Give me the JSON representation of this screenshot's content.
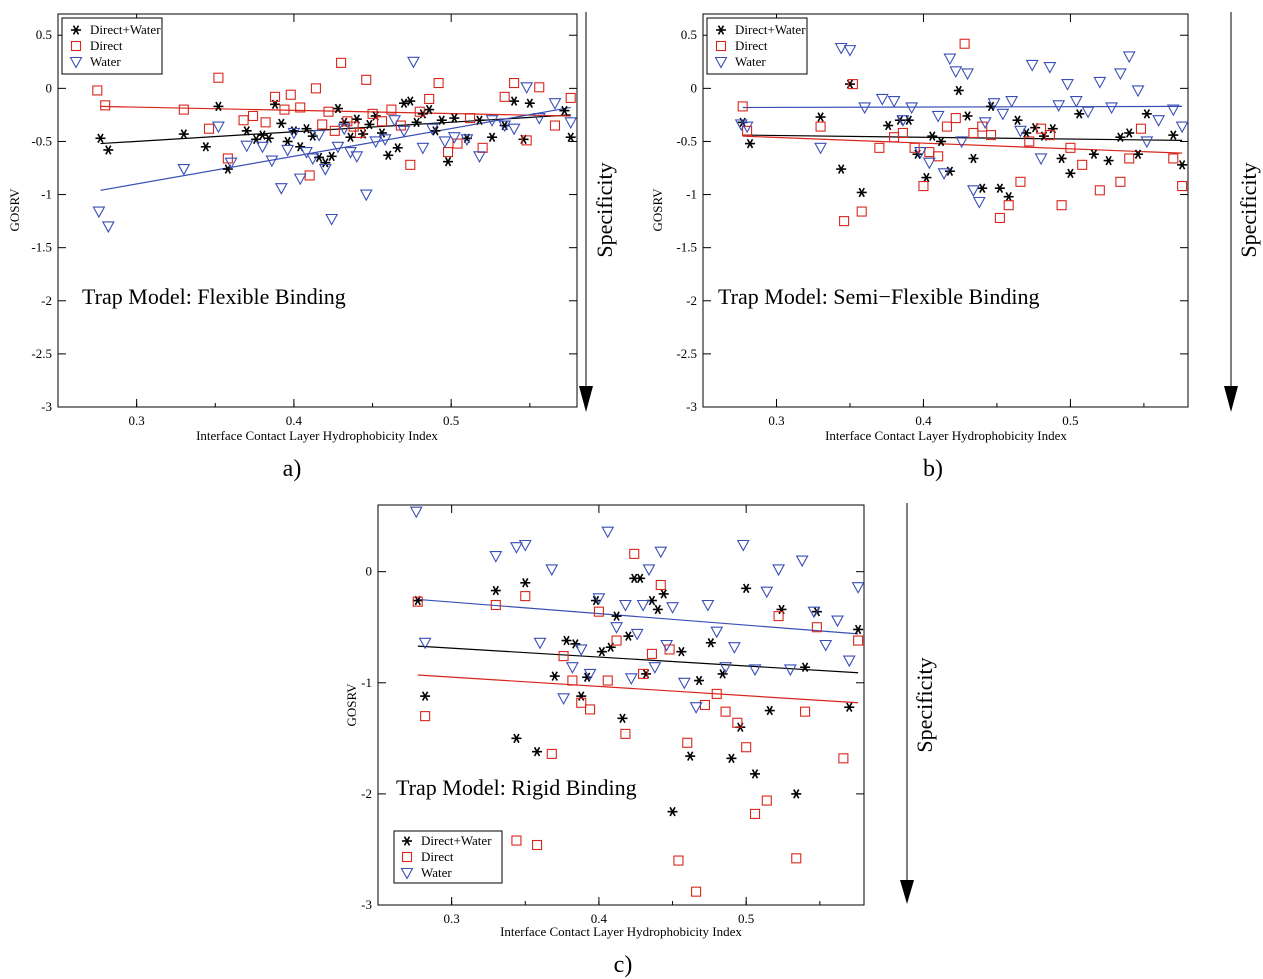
{
  "colors": {
    "combined": "#000000",
    "direct": "#d9261c",
    "water": "#3a4fb5",
    "axis": "#000000"
  },
  "chart_data": [
    {
      "type": "scatter",
      "panel_label": "a)",
      "annotation": "Trap Model: Flexible Binding",
      "xlabel": "Interface Contact Layer Hydrophobicity Index",
      "ylabel": "GOSRV",
      "specificity_label": "Specificity",
      "xlim": [
        0.25,
        0.58
      ],
      "ylim": [
        -3,
        0.7
      ],
      "xticks": [
        "0.3",
        "0.4",
        "0.5"
      ],
      "yticks": [
        "-3",
        "-2.5",
        "-2",
        "-1.5",
        "-1",
        "-0.5",
        "0",
        "0.5"
      ],
      "grid": false,
      "legend_position": "top-left",
      "series": [
        {
          "name": "Direct+Water",
          "marker": "star",
          "x": [
            0.277,
            0.282,
            0.33,
            0.344,
            0.352,
            0.358,
            0.37,
            0.376,
            0.38,
            0.384,
            0.388,
            0.392,
            0.396,
            0.4,
            0.404,
            0.408,
            0.412,
            0.416,
            0.42,
            0.424,
            0.428,
            0.432,
            0.436,
            0.44,
            0.444,
            0.448,
            0.452,
            0.456,
            0.46,
            0.466,
            0.47,
            0.474,
            0.478,
            0.482,
            0.486,
            0.49,
            0.494,
            0.498,
            0.502,
            0.51,
            0.518,
            0.526,
            0.534,
            0.54,
            0.546,
            0.55,
            0.572,
            0.576
          ],
          "y": [
            -0.47,
            -0.58,
            -0.43,
            -0.55,
            -0.17,
            -0.76,
            -0.4,
            -0.48,
            -0.44,
            -0.47,
            -0.15,
            -0.33,
            -0.5,
            -0.4,
            -0.55,
            -0.38,
            -0.45,
            -0.65,
            -0.7,
            -0.64,
            -0.19,
            -0.32,
            -0.46,
            -0.29,
            -0.43,
            -0.34,
            -0.26,
            -0.42,
            -0.63,
            -0.56,
            -0.14,
            -0.12,
            -0.32,
            -0.24,
            -0.2,
            -0.4,
            -0.3,
            -0.69,
            -0.28,
            -0.47,
            -0.3,
            -0.46,
            -0.35,
            -0.12,
            -0.48,
            -0.14,
            -0.21,
            -0.46
          ]
        },
        {
          "name": "Direct",
          "marker": "square",
          "x": [
            0.275,
            0.28,
            0.33,
            0.346,
            0.352,
            0.358,
            0.368,
            0.374,
            0.382,
            0.388,
            0.394,
            0.398,
            0.404,
            0.41,
            0.414,
            0.418,
            0.422,
            0.426,
            0.43,
            0.434,
            0.438,
            0.442,
            0.446,
            0.45,
            0.456,
            0.462,
            0.468,
            0.474,
            0.48,
            0.486,
            0.492,
            0.498,
            0.504,
            0.512,
            0.52,
            0.534,
            0.54,
            0.548,
            0.556,
            0.566,
            0.576
          ],
          "y": [
            -0.02,
            -0.16,
            -0.2,
            -0.38,
            0.1,
            -0.66,
            -0.3,
            -0.26,
            -0.32,
            -0.08,
            -0.2,
            -0.06,
            -0.18,
            -0.82,
            0.0,
            -0.34,
            -0.22,
            -0.4,
            0.24,
            -0.31,
            -0.36,
            -0.42,
            0.08,
            -0.24,
            -0.31,
            -0.2,
            -0.35,
            -0.72,
            -0.22,
            -0.1,
            0.05,
            -0.6,
            -0.52,
            -0.28,
            -0.56,
            -0.08,
            0.05,
            -0.49,
            0.01,
            -0.35,
            -0.09
          ]
        },
        {
          "name": "Water",
          "marker": "triangle",
          "x": [
            0.276,
            0.282,
            0.33,
            0.352,
            0.36,
            0.37,
            0.38,
            0.386,
            0.392,
            0.396,
            0.4,
            0.404,
            0.408,
            0.412,
            0.416,
            0.42,
            0.424,
            0.428,
            0.432,
            0.436,
            0.44,
            0.446,
            0.452,
            0.458,
            0.464,
            0.47,
            0.476,
            0.482,
            0.488,
            0.496,
            0.502,
            0.51,
            0.518,
            0.526,
            0.534,
            0.54,
            0.548,
            0.556,
            0.566,
            0.576
          ],
          "y": [
            -1.16,
            -1.3,
            -0.76,
            -0.36,
            -0.7,
            -0.54,
            -0.55,
            -0.68,
            -0.94,
            -0.58,
            -0.42,
            -0.85,
            -0.6,
            -0.66,
            -0.44,
            -0.76,
            -1.23,
            -0.55,
            -0.38,
            -0.6,
            -0.64,
            -1.0,
            -0.5,
            -0.48,
            -0.3,
            -0.4,
            0.25,
            -0.56,
            -0.38,
            -0.5,
            -0.46,
            -0.48,
            -0.64,
            -0.3,
            -0.35,
            -0.38,
            0.01,
            -0.28,
            -0.14,
            -0.32
          ]
        }
      ],
      "fits": [
        {
          "series": "Direct+Water",
          "x": [
            0.277,
            0.576
          ],
          "y": [
            -0.52,
            -0.25
          ]
        },
        {
          "series": "Direct",
          "x": [
            0.277,
            0.576
          ],
          "y": [
            -0.17,
            -0.26
          ]
        },
        {
          "series": "Water",
          "x": [
            0.277,
            0.576
          ],
          "y": [
            -0.96,
            -0.18
          ]
        }
      ]
    },
    {
      "type": "scatter",
      "panel_label": "b)",
      "annotation": "Trap Model: Semi−Flexible Binding",
      "xlabel": "Interface Contact Layer Hydrophobicity Index",
      "ylabel": "GOSRV",
      "specificity_label": "Specificity",
      "xlim": [
        0.25,
        0.58
      ],
      "ylim": [
        -3,
        0.7
      ],
      "xticks": [
        "0.3",
        "0.4",
        "0.5"
      ],
      "yticks": [
        "-3",
        "-2.5",
        "-2",
        "-1.5",
        "-1",
        "-0.5",
        "0",
        "0.5"
      ],
      "grid": false,
      "legend_position": "top-left",
      "series": [
        {
          "name": "Direct+Water",
          "marker": "star",
          "x": [
            0.277,
            0.282,
            0.33,
            0.344,
            0.35,
            0.358,
            0.376,
            0.384,
            0.39,
            0.396,
            0.402,
            0.406,
            0.412,
            0.418,
            0.424,
            0.43,
            0.434,
            0.44,
            0.446,
            0.452,
            0.458,
            0.464,
            0.47,
            0.476,
            0.482,
            0.488,
            0.494,
            0.5,
            0.506,
            0.516,
            0.526,
            0.534,
            0.54,
            0.546,
            0.552,
            0.57,
            0.576
          ],
          "y": [
            -0.32,
            -0.52,
            -0.27,
            -0.76,
            0.04,
            -0.98,
            -0.35,
            -0.3,
            -0.3,
            -0.62,
            -0.84,
            -0.45,
            -0.5,
            -0.78,
            -0.02,
            -0.26,
            -0.66,
            -0.94,
            -0.17,
            -0.94,
            -1.02,
            -0.3,
            -0.42,
            -0.37,
            -0.45,
            -0.38,
            -0.66,
            -0.8,
            -0.24,
            -0.62,
            -0.68,
            -0.46,
            -0.42,
            -0.62,
            -0.24,
            -0.44,
            -0.72
          ]
        },
        {
          "name": "Direct",
          "marker": "square",
          "x": [
            0.277,
            0.28,
            0.33,
            0.346,
            0.352,
            0.358,
            0.37,
            0.38,
            0.386,
            0.394,
            0.4,
            0.404,
            0.41,
            0.416,
            0.422,
            0.428,
            0.434,
            0.44,
            0.446,
            0.452,
            0.458,
            0.466,
            0.472,
            0.48,
            0.486,
            0.494,
            0.5,
            0.508,
            0.52,
            0.534,
            0.54,
            0.548,
            0.57,
            0.576
          ],
          "y": [
            -0.17,
            -0.4,
            -0.36,
            -1.25,
            0.04,
            -1.16,
            -0.56,
            -0.46,
            -0.42,
            -0.56,
            -0.92,
            -0.6,
            -0.64,
            -0.36,
            -0.28,
            0.42,
            -0.42,
            -0.36,
            -0.44,
            -1.22,
            -1.1,
            -0.88,
            -0.5,
            -0.38,
            -0.44,
            -1.1,
            -0.56,
            -0.72,
            -0.96,
            -0.88,
            -0.66,
            -0.38,
            -0.66,
            -0.92
          ]
        },
        {
          "name": "Water",
          "marker": "triangle",
          "x": [
            0.276,
            0.28,
            0.33,
            0.344,
            0.35,
            0.36,
            0.372,
            0.38,
            0.386,
            0.392,
            0.398,
            0.404,
            0.41,
            0.414,
            0.418,
            0.422,
            0.426,
            0.43,
            0.434,
            0.438,
            0.442,
            0.448,
            0.454,
            0.46,
            0.466,
            0.474,
            0.48,
            0.486,
            0.492,
            0.498,
            0.504,
            0.512,
            0.52,
            0.528,
            0.534,
            0.54,
            0.546,
            0.552,
            0.56,
            0.57,
            0.576
          ],
          "y": [
            -0.34,
            -0.36,
            -0.56,
            0.38,
            0.36,
            -0.18,
            -0.1,
            -0.12,
            -0.3,
            -0.18,
            -0.6,
            -0.7,
            -0.26,
            -0.8,
            0.28,
            0.16,
            -0.5,
            0.14,
            -0.96,
            -1.07,
            -0.32,
            -0.14,
            -0.24,
            -0.12,
            -0.4,
            0.22,
            -0.66,
            0.2,
            -0.16,
            0.04,
            -0.12,
            -0.22,
            0.06,
            -0.18,
            0.14,
            0.3,
            -0.02,
            -0.5,
            -0.3,
            -0.2,
            -0.36
          ]
        }
      ],
      "fits": [
        {
          "series": "Direct+Water",
          "x": [
            0.277,
            0.576
          ],
          "y": [
            -0.44,
            -0.49
          ]
        },
        {
          "series": "Direct",
          "x": [
            0.277,
            0.576
          ],
          "y": [
            -0.45,
            -0.61
          ]
        },
        {
          "series": "Water",
          "x": [
            0.277,
            0.576
          ],
          "y": [
            -0.18,
            -0.17
          ]
        }
      ]
    },
    {
      "type": "scatter",
      "panel_label": "c)",
      "annotation": "Trap Model: Rigid Binding",
      "xlabel": "Interface Contact Layer Hydrophobicity Index",
      "ylabel": "GOSRV",
      "specificity_label": "Specificity",
      "xlim": [
        0.25,
        0.58
      ],
      "ylim": [
        -3,
        0.6
      ],
      "xticks": [
        "0.3",
        "0.4",
        "0.5"
      ],
      "yticks": [
        "-3",
        "-2",
        "-1",
        "0"
      ],
      "grid": false,
      "legend_position": "bottom-left",
      "series": [
        {
          "name": "Direct+Water",
          "marker": "star",
          "x": [
            0.277,
            0.282,
            0.33,
            0.344,
            0.35,
            0.358,
            0.37,
            0.378,
            0.384,
            0.388,
            0.392,
            0.398,
            0.402,
            0.408,
            0.412,
            0.416,
            0.42,
            0.424,
            0.428,
            0.432,
            0.436,
            0.44,
            0.444,
            0.45,
            0.456,
            0.462,
            0.468,
            0.476,
            0.484,
            0.49,
            0.496,
            0.5,
            0.506,
            0.516,
            0.524,
            0.534,
            0.54,
            0.548,
            0.57,
            0.576
          ],
          "y": [
            -0.26,
            -1.12,
            -0.17,
            -1.5,
            -0.1,
            -1.62,
            -0.94,
            -0.62,
            -0.65,
            -1.12,
            -0.95,
            -0.26,
            -0.72,
            -0.68,
            -0.4,
            -1.32,
            -0.58,
            -0.06,
            -0.06,
            -0.92,
            -0.26,
            -0.34,
            -0.2,
            -2.16,
            -0.72,
            -1.66,
            -0.98,
            -0.64,
            -0.92,
            -1.68,
            -1.4,
            -0.15,
            -1.82,
            -1.25,
            -0.34,
            -2.0,
            -0.86,
            -0.36,
            -1.22,
            -0.52
          ]
        },
        {
          "name": "Direct",
          "marker": "square",
          "x": [
            0.277,
            0.282,
            0.33,
            0.344,
            0.35,
            0.358,
            0.368,
            0.376,
            0.382,
            0.388,
            0.394,
            0.4,
            0.406,
            0.412,
            0.418,
            0.424,
            0.43,
            0.436,
            0.442,
            0.448,
            0.454,
            0.46,
            0.466,
            0.472,
            0.48,
            0.486,
            0.494,
            0.5,
            0.506,
            0.514,
            0.522,
            0.534,
            0.54,
            0.548,
            0.566,
            0.576
          ],
          "y": [
            -0.27,
            -1.3,
            -0.3,
            -2.42,
            -0.22,
            -2.46,
            -1.64,
            -0.76,
            -0.98,
            -1.18,
            -1.24,
            -0.36,
            -0.98,
            -0.62,
            -1.46,
            0.16,
            -0.92,
            -0.74,
            -0.12,
            -0.7,
            -2.6,
            -1.54,
            -2.88,
            -1.2,
            -1.1,
            -1.26,
            -1.36,
            -1.58,
            -2.18,
            -2.06,
            -0.4,
            -2.58,
            -1.26,
            -0.5,
            -1.68,
            -0.62
          ]
        },
        {
          "name": "Water",
          "marker": "triangle",
          "x": [
            0.276,
            0.282,
            0.33,
            0.344,
            0.35,
            0.36,
            0.368,
            0.376,
            0.382,
            0.388,
            0.394,
            0.4,
            0.406,
            0.412,
            0.418,
            0.422,
            0.426,
            0.43,
            0.434,
            0.438,
            0.442,
            0.446,
            0.45,
            0.458,
            0.466,
            0.474,
            0.48,
            0.486,
            0.492,
            0.498,
            0.506,
            0.514,
            0.522,
            0.53,
            0.538,
            0.546,
            0.554,
            0.562,
            0.57,
            0.576
          ],
          "y": [
            0.54,
            -0.64,
            0.14,
            0.22,
            0.24,
            -0.64,
            0.02,
            -1.14,
            -0.86,
            -0.7,
            -0.92,
            -0.24,
            0.36,
            -0.5,
            -0.3,
            -0.96,
            -0.56,
            -0.3,
            0.02,
            -0.86,
            0.18,
            -0.66,
            -0.32,
            -1.0,
            -1.22,
            -0.3,
            -0.54,
            -0.86,
            -0.68,
            0.24,
            -0.88,
            -0.18,
            0.02,
            -0.88,
            0.1,
            -0.36,
            -0.66,
            -0.44,
            -0.8,
            -0.14
          ]
        }
      ],
      "fits": [
        {
          "series": "Direct+Water",
          "x": [
            0.277,
            0.576
          ],
          "y": [
            -0.67,
            -0.91
          ]
        },
        {
          "series": "Direct",
          "x": [
            0.277,
            0.576
          ],
          "y": [
            -0.93,
            -1.18
          ]
        },
        {
          "series": "Water",
          "x": [
            0.277,
            0.576
          ],
          "y": [
            -0.25,
            -0.56
          ]
        }
      ]
    }
  ]
}
